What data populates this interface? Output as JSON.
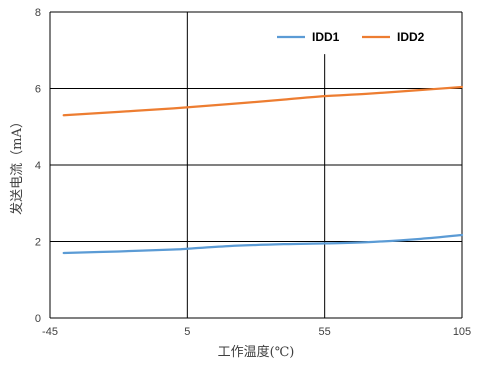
{
  "chart_data": {
    "type": "line",
    "xlabel": "工作温度(℃)",
    "ylabel": "发送电流（mA）",
    "xlim": [
      -45,
      105
    ],
    "ylim": [
      0,
      8
    ],
    "x_ticks": [
      -45,
      5,
      55,
      105
    ],
    "y_ticks": [
      0,
      2,
      4,
      6,
      8
    ],
    "grid": true,
    "legend_position": "top-right",
    "series": [
      {
        "name": "IDD1",
        "color": "#5b9bd5",
        "x": [
          -40,
          -20,
          0,
          5,
          20,
          40,
          55,
          70,
          90,
          105
        ],
        "y": [
          1.7,
          1.74,
          1.79,
          1.81,
          1.88,
          1.93,
          1.95,
          1.98,
          2.07,
          2.17
        ]
      },
      {
        "name": "IDD2",
        "color": "#ed7d31",
        "x": [
          -40,
          -20,
          0,
          20,
          40,
          55,
          70,
          90,
          105
        ],
        "y": [
          5.3,
          5.39,
          5.48,
          5.59,
          5.71,
          5.8,
          5.86,
          5.96,
          6.04
        ]
      }
    ]
  }
}
